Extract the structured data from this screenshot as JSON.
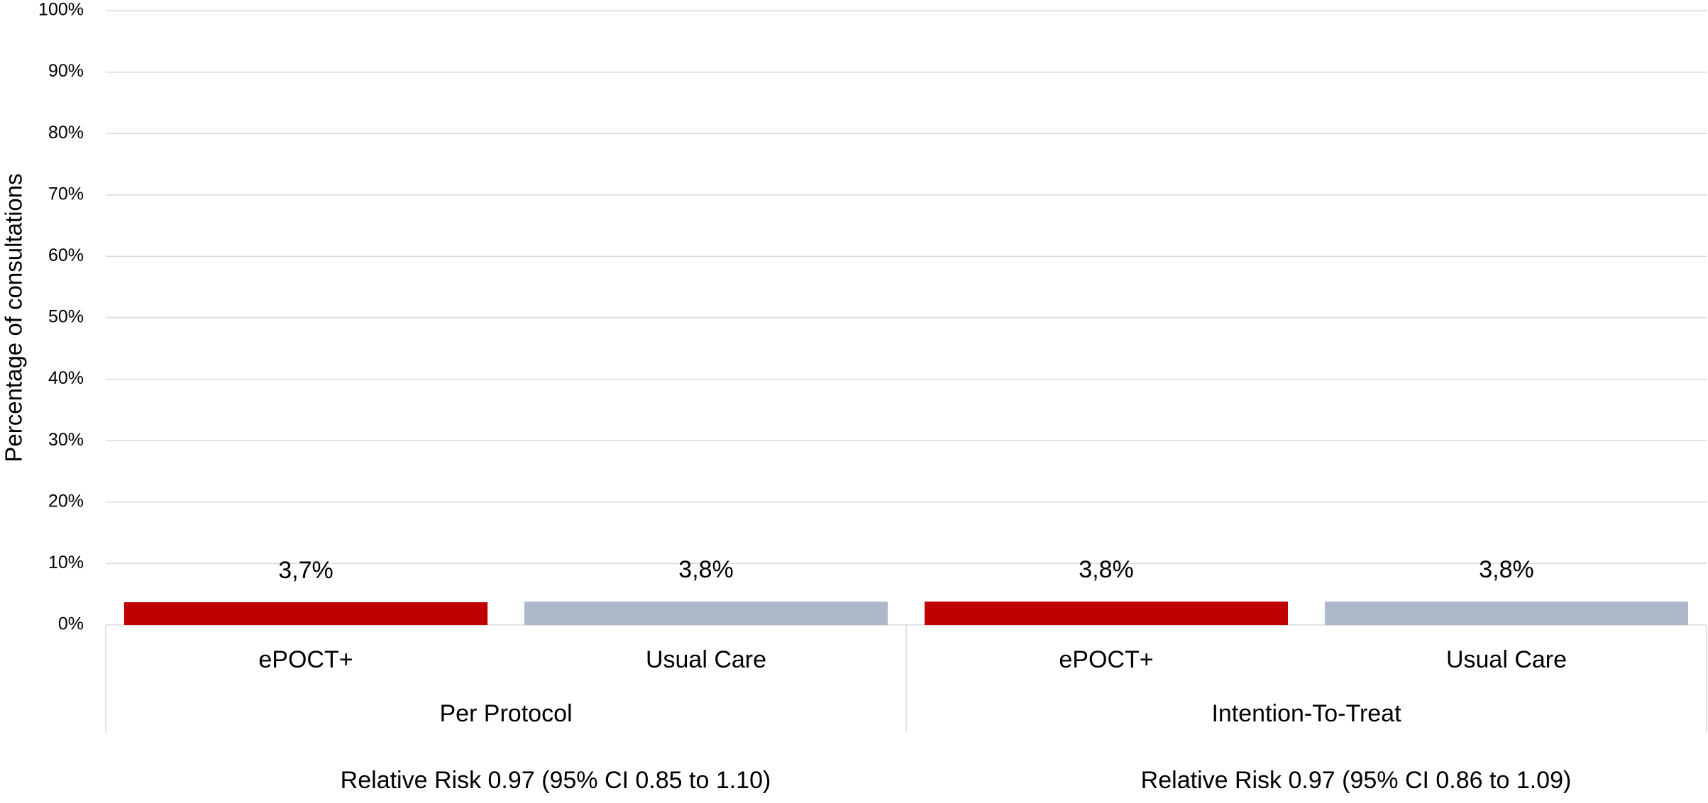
{
  "chart_data": {
    "type": "bar",
    "y_label": "Percentage of consultations",
    "categories": [
      "Per Protocol",
      "Intention-To-Treat"
    ],
    "series": [
      {
        "name": "ePOCT+",
        "color": "#c00000",
        "values": [
          3.7,
          3.8
        ],
        "value_labels": [
          "3,7%",
          "3,8%"
        ]
      },
      {
        "name": "Usual Care",
        "color": "#adb9ca",
        "values": [
          3.8,
          3.8
        ],
        "value_labels": [
          "3,8%",
          "3,8%"
        ]
      }
    ],
    "ylim": [
      0,
      100
    ],
    "yticks": [
      {
        "value": 0,
        "label": "0%"
      },
      {
        "value": 10,
        "label": "10%"
      },
      {
        "value": 20,
        "label": "20%"
      },
      {
        "value": 30,
        "label": "30%"
      },
      {
        "value": 40,
        "label": "40%"
      },
      {
        "value": 50,
        "label": "50%"
      },
      {
        "value": 60,
        "label": "60%"
      },
      {
        "value": 70,
        "label": "70%"
      },
      {
        "value": 80,
        "label": "80%"
      },
      {
        "value": 90,
        "label": "90%"
      },
      {
        "value": 100,
        "label": "100%"
      }
    ],
    "grid": true,
    "annotations": [
      "Relative Risk 0.97 (95% CI 0.85 to 1.10)",
      "Relative Risk 0.97 (95% CI 0.86 to 1.09)"
    ]
  }
}
